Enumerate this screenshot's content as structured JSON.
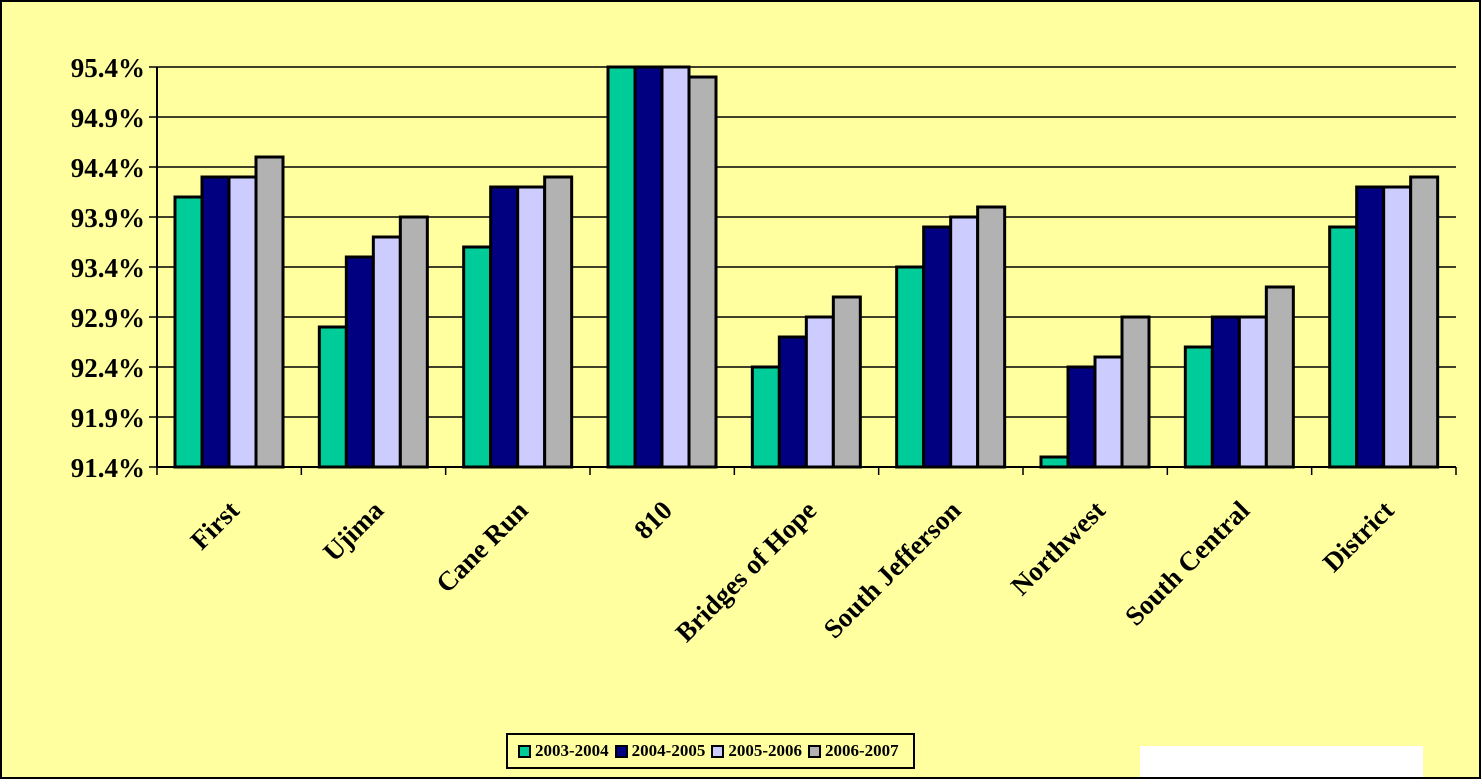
{
  "chart_data": {
    "type": "bar",
    "categories": [
      "First",
      "Ujima",
      "Cane Run",
      "810",
      "Bridges of Hope",
      "South Jefferson",
      "Northwest",
      "South Central",
      "District"
    ],
    "series": [
      {
        "name": "2003-2004",
        "color": "#00cc99",
        "values": [
          94.1,
          92.8,
          93.6,
          95.4,
          92.4,
          93.4,
          91.5,
          92.6,
          93.8
        ]
      },
      {
        "name": "2004-2005",
        "color": "#000080",
        "values": [
          94.3,
          93.5,
          94.2,
          95.4,
          92.7,
          93.8,
          92.4,
          92.9,
          94.2
        ]
      },
      {
        "name": "2005-2006",
        "color": "#ccccff",
        "values": [
          94.3,
          93.7,
          94.2,
          95.4,
          92.9,
          93.9,
          92.5,
          92.9,
          94.2
        ]
      },
      {
        "name": "2006-2007",
        "color": "#b2b2b2",
        "values": [
          94.5,
          93.9,
          94.3,
          95.3,
          93.1,
          94.0,
          92.9,
          93.2,
          94.3
        ]
      }
    ],
    "yticks": [
      "91.4%",
      "91.9%",
      "92.4%",
      "92.9%",
      "93.4%",
      "93.9%",
      "94.4%",
      "94.9%",
      "95.4%"
    ],
    "ylim": [
      91.4,
      95.4
    ],
    "grid": true,
    "legend_position": "bottom",
    "background_color": "#ffffa0",
    "title": "",
    "xlabel": "",
    "ylabel": ""
  }
}
